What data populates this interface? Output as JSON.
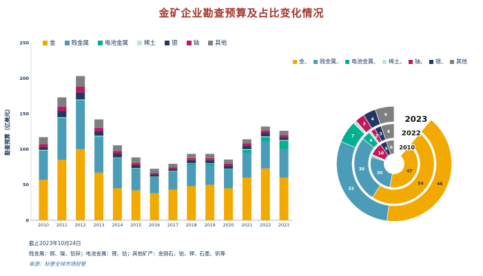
{
  "title": "金矿企业勘查预算及占比变化情况",
  "colors": {
    "金": "#F2A900",
    "贱金属": "#4A9CB8",
    "电池金属": "#00B092",
    "稀土": "#BCE4D8",
    "银": "#1F3864",
    "铀": "#C2185B",
    "其他": "#7F7F7F",
    "title_color": "#A3342B",
    "axis_text_color": "#17365D",
    "source_text_color": "#2E74B5"
  },
  "bar_legend": [
    "金",
    "贱金属",
    "电池金属",
    "稀土",
    "银",
    "铀",
    "其他"
  ],
  "donut_legend": [
    "金",
    "贱金属",
    "电池金属",
    "稀土",
    "铀",
    "银",
    "其他"
  ],
  "footnotes": {
    "as_of": "截止2023年10月24日",
    "definitions": "贱金属：铜、镍、铅锌；电池金属：锂、钴；其他矿产：金刚石、铂、钾、石墨、钒等",
    "source": "来源：标普全球市场财智"
  },
  "chart_data": [
    {
      "type": "bar",
      "stacked": true,
      "title": "金矿企业勘查预算",
      "ylabel": "勘查预算（亿美元）",
      "xlabel": "",
      "ylim": [
        0,
        250
      ],
      "yticks": [
        0,
        50,
        100,
        150,
        200,
        250
      ],
      "grid": false,
      "legend_position": "top",
      "categories": [
        "2010",
        "2011",
        "2012",
        "2013",
        "2014",
        "2015",
        "2016",
        "2017",
        "2018",
        "2019",
        "2020",
        "2021",
        "2022",
        "2023"
      ],
      "series": [
        {
          "name": "金",
          "values": [
            57,
            85,
            100,
            67,
            45,
            42,
            38,
            43,
            48,
            50,
            45,
            60,
            73,
            60
          ]
        },
        {
          "name": "贱金属",
          "values": [
            40,
            58,
            68,
            50,
            42,
            30,
            22,
            25,
            30,
            28,
            25,
            35,
            38,
            40
          ]
        },
        {
          "name": "电池金属",
          "values": [
            1,
            1,
            1,
            1,
            1,
            1,
            1,
            1,
            2,
            2,
            2,
            4,
            6,
            12
          ]
        },
        {
          "name": "稀土",
          "values": [
            1,
            1,
            1,
            1,
            0.5,
            0.5,
            0.5,
            0.5,
            0.5,
            0.5,
            0.5,
            1,
            1,
            1
          ]
        },
        {
          "name": "银",
          "values": [
            4,
            9,
            10,
            6,
            5,
            4,
            3,
            3,
            4,
            4,
            4,
            5,
            5,
            4
          ]
        },
        {
          "name": "铀",
          "values": [
            4,
            6,
            8,
            5,
            4,
            3,
            2,
            2,
            3,
            3,
            3,
            3,
            3,
            3
          ]
        },
        {
          "name": "其他",
          "values": [
            10,
            13,
            15,
            12,
            8,
            8,
            6,
            5,
            6,
            6,
            6,
            6,
            6,
            6
          ]
        }
      ]
    },
    {
      "type": "donut",
      "unit": "%",
      "legend_position": "top",
      "segment_order": [
        "金",
        "贱金属",
        "电池金属",
        "稀土",
        "铀",
        "银",
        "其他"
      ],
      "rings": [
        {
          "year": "2023",
          "values": [
            46,
            33,
            7,
            1,
            3,
            4,
            6
          ]
        },
        {
          "year": "2022",
          "values": [
            54,
            30,
            4,
            1,
            2,
            3,
            6
          ]
        },
        {
          "year": "2010",
          "values": [
            47,
            30,
            1,
            1,
            10,
            5,
            6
          ]
        }
      ]
    }
  ]
}
